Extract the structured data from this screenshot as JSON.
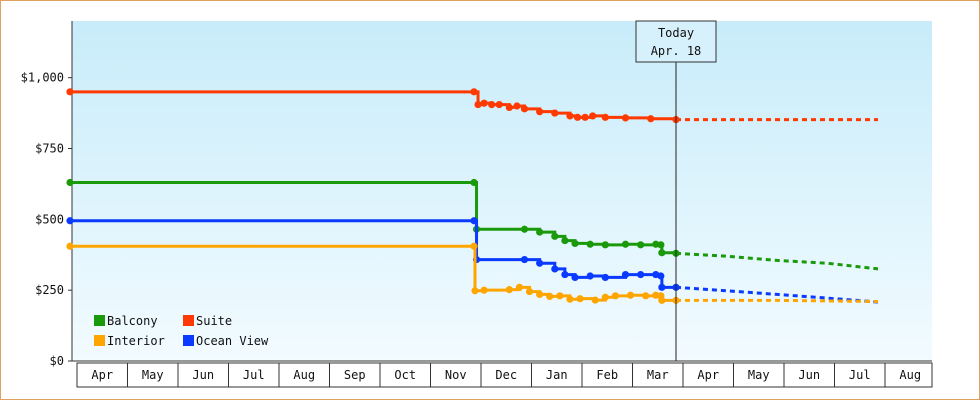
{
  "chart_data": {
    "type": "line",
    "title": "",
    "xlabel": "",
    "ylabel": "",
    "ylim": [
      0,
      1200
    ],
    "y_ticks": [
      {
        "value": 0,
        "label": "$0"
      },
      {
        "value": 250,
        "label": "$250"
      },
      {
        "value": 500,
        "label": "$500"
      },
      {
        "value": 750,
        "label": "$750"
      },
      {
        "value": 1000,
        "label": "$1,000"
      }
    ],
    "x_months": [
      "Apr",
      "May",
      "Jun",
      "Jul",
      "Aug",
      "Sep",
      "Oct",
      "Nov",
      "Dec",
      "Jan",
      "Feb",
      "Mar",
      "Apr",
      "May",
      "Jun",
      "Jul",
      "Aug"
    ],
    "today": {
      "line1": "Today",
      "line2": "Apr. 18",
      "x": 12.0
    },
    "grid": false,
    "background": "gradient light blue",
    "legend": {
      "placement": "bottom-left"
    },
    "series": [
      {
        "name": "Suite",
        "color": "#ff3a00",
        "points": [
          [
            0.0,
            950
          ],
          [
            8.0,
            950
          ],
          [
            8.08,
            905
          ],
          [
            8.2,
            910
          ],
          [
            8.35,
            905
          ],
          [
            8.5,
            905
          ],
          [
            8.7,
            895
          ],
          [
            8.85,
            900
          ],
          [
            9.0,
            890
          ],
          [
            9.3,
            880
          ],
          [
            9.6,
            875
          ],
          [
            9.9,
            865
          ],
          [
            10.05,
            860
          ],
          [
            10.2,
            860
          ],
          [
            10.35,
            865
          ],
          [
            10.6,
            860
          ],
          [
            11.0,
            858
          ],
          [
            11.5,
            855
          ],
          [
            12.0,
            852
          ]
        ],
        "forecast": [
          [
            12.0,
            852
          ],
          [
            16.0,
            852
          ]
        ]
      },
      {
        "name": "Balcony",
        "color": "#1a9a0a",
        "points": [
          [
            0.0,
            630
          ],
          [
            8.0,
            630
          ],
          [
            8.05,
            465
          ],
          [
            9.0,
            465
          ],
          [
            9.3,
            455
          ],
          [
            9.6,
            440
          ],
          [
            9.8,
            425
          ],
          [
            10.0,
            415
          ],
          [
            10.3,
            412
          ],
          [
            10.6,
            410
          ],
          [
            11.0,
            412
          ],
          [
            11.3,
            410
          ],
          [
            11.6,
            412
          ],
          [
            11.7,
            410
          ],
          [
            11.72,
            382
          ],
          [
            12.0,
            380
          ]
        ],
        "forecast": [
          [
            12.0,
            380
          ],
          [
            13.0,
            370
          ],
          [
            14.0,
            355
          ],
          [
            15.0,
            345
          ],
          [
            16.0,
            325
          ]
        ]
      },
      {
        "name": "Ocean View",
        "color": "#0a3aff",
        "points": [
          [
            0.0,
            495
          ],
          [
            8.0,
            495
          ],
          [
            8.05,
            358
          ],
          [
            9.0,
            358
          ],
          [
            9.3,
            345
          ],
          [
            9.6,
            325
          ],
          [
            9.8,
            305
          ],
          [
            10.0,
            295
          ],
          [
            10.3,
            300
          ],
          [
            10.6,
            295
          ],
          [
            11.0,
            305
          ],
          [
            11.3,
            305
          ],
          [
            11.6,
            305
          ],
          [
            11.7,
            300
          ],
          [
            11.72,
            260
          ],
          [
            12.0,
            260
          ]
        ],
        "forecast": [
          [
            12.0,
            260
          ],
          [
            13.0,
            248
          ],
          [
            14.0,
            235
          ],
          [
            15.0,
            222
          ],
          [
            16.0,
            208
          ]
        ]
      },
      {
        "name": "Interior",
        "color": "#ffa500",
        "points": [
          [
            0.0,
            405
          ],
          [
            8.0,
            405
          ],
          [
            8.02,
            248
          ],
          [
            8.2,
            250
          ],
          [
            8.7,
            252
          ],
          [
            8.9,
            260
          ],
          [
            9.1,
            245
          ],
          [
            9.3,
            235
          ],
          [
            9.5,
            228
          ],
          [
            9.7,
            230
          ],
          [
            9.9,
            218
          ],
          [
            10.1,
            220
          ],
          [
            10.4,
            215
          ],
          [
            10.6,
            225
          ],
          [
            10.8,
            230
          ],
          [
            11.1,
            232
          ],
          [
            11.4,
            230
          ],
          [
            11.6,
            232
          ],
          [
            11.7,
            230
          ],
          [
            11.72,
            214
          ],
          [
            12.0,
            214
          ]
        ],
        "forecast": [
          [
            12.0,
            214
          ],
          [
            14.0,
            214
          ],
          [
            16.0,
            210
          ]
        ]
      }
    ],
    "legend_entries": [
      {
        "name": "Balcony",
        "color": "#1a9a0a"
      },
      {
        "name": "Suite",
        "color": "#ff3a00"
      },
      {
        "name": "Interior",
        "color": "#ffa500"
      },
      {
        "name": "Ocean View",
        "color": "#0a3aff"
      }
    ]
  }
}
